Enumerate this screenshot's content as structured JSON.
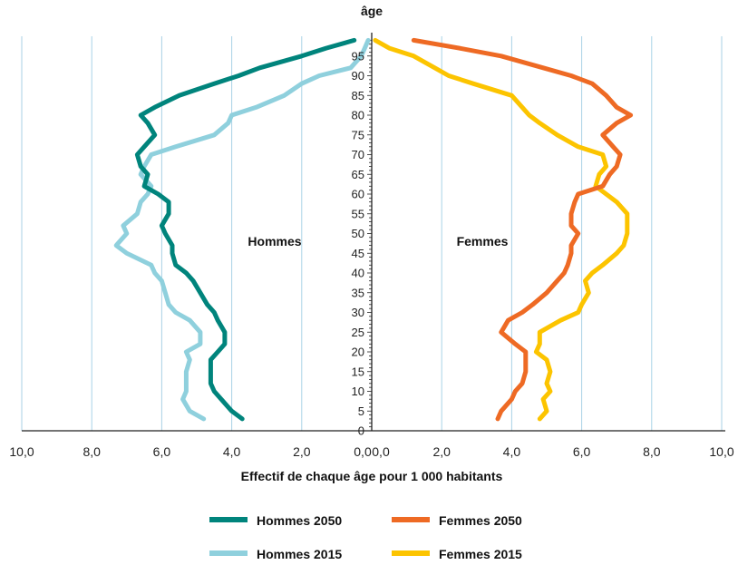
{
  "chart_data": {
    "type": "line",
    "title": "âge",
    "xlabel": "Effectif de chaque âge pour 1 000 habitants",
    "ylabel": "âge",
    "x_ticks": [
      "10,0",
      "8,0",
      "6,0",
      "4,0",
      "2,0",
      "0,0",
      "0,0",
      "2,0",
      "4,0",
      "6,0",
      "8,0",
      "10,0"
    ],
    "y_ticks": [
      "0",
      "5",
      "10",
      "15",
      "20",
      "25",
      "30",
      "35",
      "40",
      "45",
      "50",
      "55",
      "60",
      "65",
      "70",
      "75",
      "80",
      "85",
      "90",
      "95"
    ],
    "xlim_each_side": [
      0,
      10
    ],
    "ylim": [
      0,
      100
    ],
    "grid": "vertical",
    "legend_position": "bottom",
    "annotations": {
      "left": "Hommes",
      "right": "Femmes"
    },
    "colors": {
      "hommes_2050": "#00847c",
      "hommes_2015": "#8fd0dd",
      "femmes_2050": "#ee6a24",
      "femmes_2015": "#fcc400",
      "grid": "#a9d2e6"
    },
    "series": [
      {
        "name": "Hommes 2050",
        "side": "left",
        "ages": [
          3,
          5,
          8,
          10,
          12,
          15,
          18,
          20,
          22,
          25,
          28,
          30,
          32,
          35,
          38,
          40,
          42,
          45,
          47,
          50,
          52,
          55,
          58,
          60,
          62,
          65,
          67,
          70,
          72,
          75,
          78,
          80,
          82,
          85,
          88,
          90,
          92,
          95,
          97,
          99
        ],
        "values": [
          3.7,
          4.0,
          4.3,
          4.5,
          4.6,
          4.6,
          4.6,
          4.4,
          4.2,
          4.2,
          4.4,
          4.5,
          4.7,
          4.9,
          5.1,
          5.3,
          5.6,
          5.7,
          5.7,
          5.9,
          6.0,
          5.8,
          5.8,
          6.1,
          6.5,
          6.4,
          6.6,
          6.7,
          6.5,
          6.2,
          6.4,
          6.6,
          6.2,
          5.5,
          4.5,
          3.8,
          3.2,
          2.0,
          1.3,
          0.5
        ]
      },
      {
        "name": "Hommes 2015",
        "side": "left",
        "ages": [
          3,
          5,
          8,
          10,
          12,
          15,
          18,
          20,
          22,
          25,
          28,
          30,
          32,
          35,
          38,
          40,
          42,
          45,
          47,
          50,
          52,
          55,
          58,
          60,
          62,
          65,
          67,
          70,
          72,
          75,
          78,
          80,
          82,
          85,
          88,
          90,
          92,
          95,
          97,
          99
        ],
        "values": [
          4.8,
          5.2,
          5.4,
          5.3,
          5.3,
          5.3,
          5.2,
          5.3,
          4.9,
          4.9,
          5.2,
          5.6,
          5.8,
          5.9,
          6.0,
          6.2,
          6.3,
          7.0,
          7.3,
          7.0,
          7.1,
          6.7,
          6.6,
          6.4,
          6.3,
          6.6,
          6.5,
          6.3,
          5.6,
          4.5,
          4.1,
          4.0,
          3.3,
          2.5,
          2.0,
          1.5,
          0.6,
          0.3,
          0.2,
          0.1
        ]
      },
      {
        "name": "Femmes 2050",
        "side": "right",
        "ages": [
          3,
          5,
          8,
          10,
          12,
          15,
          18,
          20,
          22,
          25,
          28,
          30,
          32,
          35,
          38,
          40,
          42,
          45,
          47,
          50,
          52,
          55,
          58,
          60,
          62,
          65,
          67,
          70,
          72,
          75,
          78,
          80,
          82,
          85,
          88,
          90,
          92,
          95,
          97,
          99
        ],
        "values": [
          3.6,
          3.7,
          4.0,
          4.1,
          4.3,
          4.4,
          4.4,
          4.4,
          4.1,
          3.7,
          3.9,
          4.3,
          4.6,
          5.0,
          5.3,
          5.5,
          5.6,
          5.7,
          5.7,
          5.9,
          5.7,
          5.7,
          5.8,
          5.9,
          6.6,
          6.8,
          7.0,
          7.1,
          6.9,
          6.6,
          7.0,
          7.4,
          7.0,
          6.7,
          6.3,
          5.7,
          4.9,
          3.7,
          2.5,
          1.2
        ]
      },
      {
        "name": "Femmes 2015",
        "side": "right",
        "ages": [
          3,
          5,
          8,
          10,
          12,
          15,
          18,
          20,
          22,
          25,
          28,
          30,
          32,
          35,
          38,
          40,
          42,
          45,
          47,
          50,
          52,
          55,
          58,
          60,
          62,
          65,
          67,
          70,
          72,
          75,
          78,
          80,
          82,
          85,
          88,
          90,
          92,
          95,
          97,
          99
        ],
        "values": [
          4.8,
          5.0,
          4.9,
          5.1,
          5.0,
          5.1,
          5.0,
          4.7,
          4.8,
          4.8,
          5.4,
          5.9,
          6.0,
          6.2,
          6.1,
          6.3,
          6.6,
          7.0,
          7.2,
          7.3,
          7.3,
          7.3,
          7.0,
          6.7,
          6.4,
          6.5,
          6.7,
          6.6,
          5.9,
          5.3,
          4.8,
          4.5,
          4.3,
          4.0,
          2.9,
          2.2,
          1.8,
          1.2,
          0.5,
          0.1
        ]
      }
    ]
  },
  "legend": [
    {
      "label": "Hommes 2050",
      "color": "#00847c"
    },
    {
      "label": "Femmes 2050",
      "color": "#ee6a24"
    },
    {
      "label": "Hommes 2015",
      "color": "#8fd0dd"
    },
    {
      "label": "Femmes 2015",
      "color": "#fcc400"
    }
  ]
}
